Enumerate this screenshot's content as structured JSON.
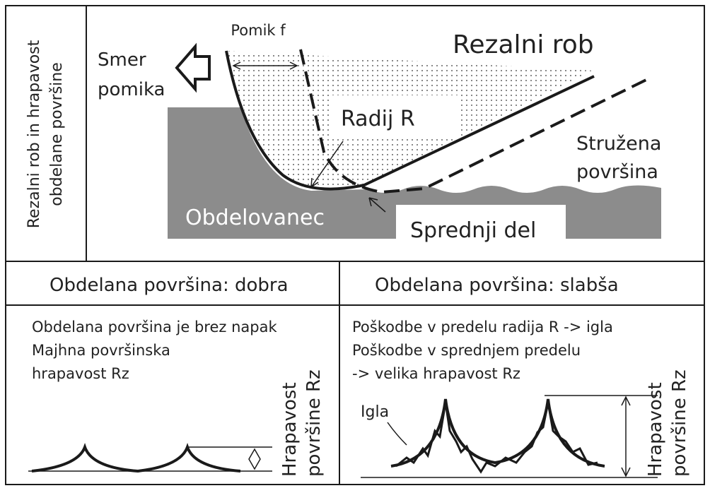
{
  "side_label": [
    "Rezalni rob in hrapavost",
    "obdelane površine"
  ],
  "diagram": {
    "feed": "Pomik f",
    "direction": [
      "Smer",
      "pomika"
    ],
    "edge": "Rezalni rob",
    "radius": "Radij R",
    "turned_surface": [
      "Stružena",
      "površina"
    ],
    "workpiece": "Obdelovanec",
    "front": "Sprednji del"
  },
  "panels": [
    {
      "title": "Obdelana površina: dobra",
      "lines": [
        "Obdelana površina je brez napak",
        "Majhna površinska",
        "hrapavost Rz"
      ],
      "roughness": [
        "Hrapavost",
        "površine Rz"
      ]
    },
    {
      "title": "Obdelana površina: slabša",
      "lines": [
        "Poškodbe v predelu radija R -> igla",
        "Poškodbe v sprednjem predelu",
        "-> velika hrapavost Rz"
      ],
      "roughness": [
        "Hrapavost",
        "površine Rz"
      ],
      "needle": "Igla"
    }
  ]
}
